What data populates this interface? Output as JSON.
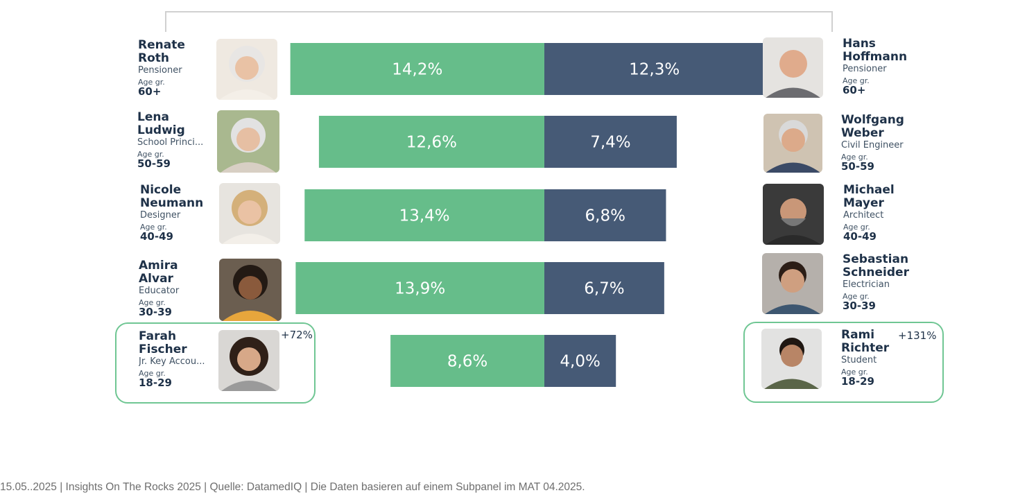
{
  "colors": {
    "female": "#66bd8a",
    "male": "#465a76",
    "highlight": "#6fc693",
    "bracket": "#d0d0d0"
  },
  "chart_data": {
    "type": "bar",
    "orientation": "horizontal-diverging",
    "categories": [
      "60+",
      "50-59",
      "40-49",
      "30-39",
      "18-29"
    ],
    "series": [
      {
        "values": [
          14.2,
          12.6,
          13.4,
          13.9,
          8.6
        ],
        "labels": [
          "14,2%",
          "12,6%",
          "13,4%",
          "13,9%",
          "8,6%"
        ]
      },
      {
        "values": [
          12.3,
          7.4,
          6.8,
          6.7,
          4.0
        ],
        "labels": [
          "12,3%",
          "7,4%",
          "6,8%",
          "6,7%",
          "4,0%"
        ]
      }
    ]
  },
  "personas_left": [
    {
      "name1": "Renate",
      "name2": "Roth",
      "role": "Pensioner",
      "age_label": "Age gr.",
      "age": "60+"
    },
    {
      "name1": "Lena",
      "name2": "Ludwig",
      "role": "School Princi...",
      "age_label": "Age gr.",
      "age": "50-59"
    },
    {
      "name1": "Nicole",
      "name2": "Neumann",
      "role": "Designer",
      "age_label": "Age gr.",
      "age": "40-49"
    },
    {
      "name1": "Amira",
      "name2": "Alvar",
      "role": "Educator",
      "age_label": "Age gr.",
      "age": "30-39"
    },
    {
      "name1": "Farah",
      "name2": "Fischer",
      "role": "Jr. Key Accou...",
      "age_label": "Age gr.",
      "age": "18-29"
    }
  ],
  "personas_right": [
    {
      "name1": "Hans",
      "name2": "Hoffmann",
      "role": "Pensioner",
      "age_label": "Age gr.",
      "age": "60+"
    },
    {
      "name1": "Wolfgang",
      "name2": "Weber",
      "role": "Civil Engineer",
      "age_label": "Age gr.",
      "age": "50-59"
    },
    {
      "name1": "Michael",
      "name2": "Mayer",
      "role": "Architect",
      "age_label": "Age gr.",
      "age": "40-49"
    },
    {
      "name1": "Sebastian",
      "name2": "Schneider",
      "role": "Electrician",
      "age_label": "Age gr.",
      "age": "30-39"
    },
    {
      "name1": "Rami",
      "name2": "Richter",
      "role": "Student",
      "age_label": "Age gr.",
      "age": "18-29"
    }
  ],
  "growth": {
    "left": "+72%",
    "right": "+131%"
  },
  "footer": "15.05..2025 | Insights On The Rocks 2025 | Quelle: DatamedIQ | Die Daten basieren auf einem Subpanel im MAT 04.2025."
}
